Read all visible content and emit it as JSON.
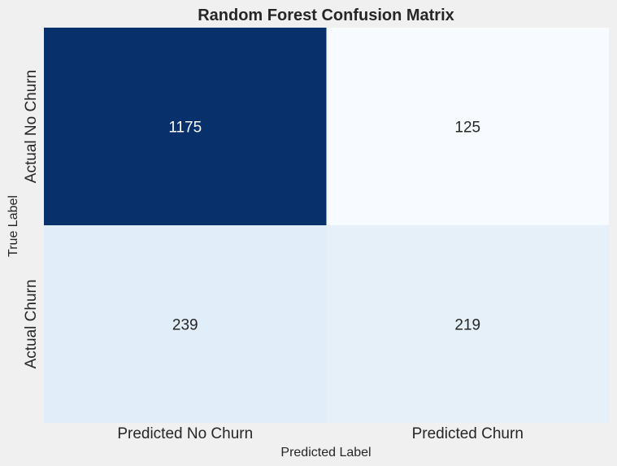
{
  "chart_data": {
    "type": "heatmap",
    "title": "Random Forest Confusion Matrix",
    "xlabel": "Predicted Label",
    "ylabel": "True Label",
    "x_categories": [
      "Predicted No Churn",
      "Predicted Churn"
    ],
    "y_categories": [
      "Actual No Churn",
      "Actual Churn"
    ],
    "values": [
      [
        1175,
        125
      ],
      [
        239,
        219
      ]
    ],
    "colormap": "Blues",
    "colorbar": false,
    "grid": false
  },
  "colors": {
    "background": "#f0f0f0",
    "text_dark": "#262626",
    "text_on_dark": "#ffffff",
    "cell_max": "#08306b",
    "cell_min": "#f7fbff"
  }
}
